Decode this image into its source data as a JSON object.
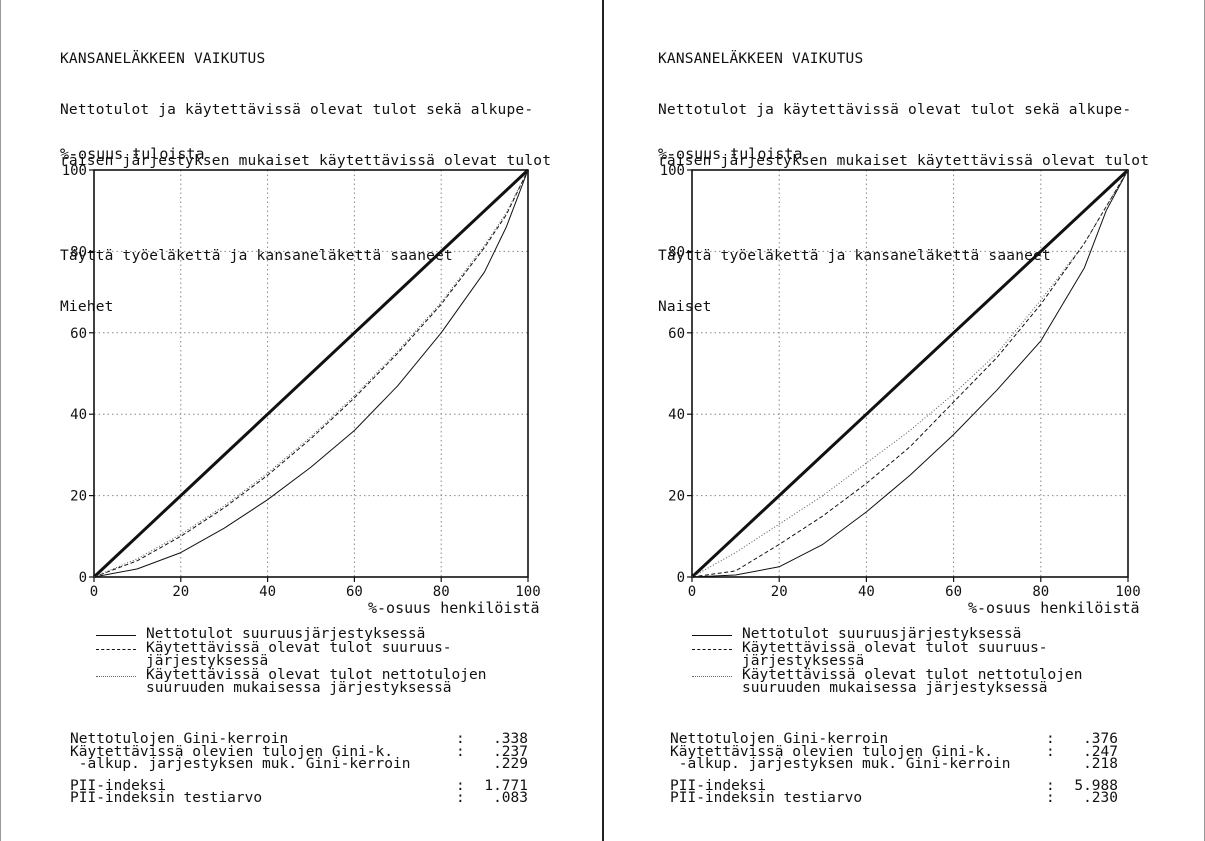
{
  "panels": [
    {
      "header": {
        "title": "KANSANELÄKKEEN VAIKUTUS",
        "line2": "Nettotulot ja käytettävissä olevat tulot sekä alkupe-",
        "line3": "räisen järjestyksen mukaiset käytettävissä olevat tulot",
        "line4": "Täyttä työeläkettä ja kansaneläkettä saaneet",
        "group": "Miehet"
      },
      "stats": [
        {
          "label": "Nettotulojen Gini-kerroin",
          "value": ".338"
        },
        {
          "label": "Käytettävissä olevien tulojen Gini-k.",
          "value": ".237"
        },
        {
          "label": " -alkup. jarjestyksen muk. Gini-kerroin",
          "value": ".229"
        },
        {
          "label": "PII-indeksi",
          "value": "1.771"
        },
        {
          "label": "PII-indeksin testiarvo",
          "value": ".083"
        }
      ]
    },
    {
      "header": {
        "title": "KANSANELÄKKEEN VAIKUTUS",
        "line2": "Nettotulot ja käytettävissä olevat tulot sekä alkupe-",
        "line3": "räisen järjestyksen mukaiset käytettävissä olevat tulot",
        "line4": "Täyttä työeläkettä ja kansaneläkettä saaneet",
        "group": "Naiset"
      },
      "stats": [
        {
          "label": "Nettotulojen Gini-kerroin",
          "value": ".376"
        },
        {
          "label": "Käytettävissä olevien tulojen Gini-k.",
          "value": ".247"
        },
        {
          "label": " -alkup. jarjestyksen muk. Gini-kerroin",
          "value": ".218"
        },
        {
          "label": "PII-indeksi",
          "value": "5.988"
        },
        {
          "label": "PII-indeksin testiarvo",
          "value": ".230"
        }
      ]
    }
  ],
  "legend": {
    "solid": [
      "Nettotulot suuruusjärjestyksessä"
    ],
    "dashed": [
      "Käytettävissä olevat tulot suuruus-",
      "järjestyksessä"
    ],
    "dotted": [
      "Käytettävissä olevat tulot nettotulojen",
      "suuruuden mukaisessa järjestyksessä"
    ]
  },
  "chart_data": [
    {
      "type": "line",
      "xlabel": "%-osuus henkilöistä",
      "ylabel": "%-osuus tuloista",
      "xlim": [
        0,
        100
      ],
      "ylim": [
        0,
        100
      ],
      "xticks": [
        0,
        20,
        40,
        60,
        80,
        100
      ],
      "yticks": [
        0,
        20,
        40,
        60,
        80,
        100
      ],
      "grid": true,
      "x": [
        0,
        10,
        20,
        30,
        40,
        50,
        60,
        70,
        80,
        90,
        95,
        100
      ],
      "series": [
        {
          "style": "thick",
          "values": [
            0,
            10,
            20,
            30,
            40,
            50,
            60,
            70,
            80,
            90,
            95,
            100
          ]
        },
        {
          "style": "solid",
          "values": [
            0,
            2,
            6,
            12,
            19,
            27,
            36,
            47,
            60,
            75,
            86,
            100
          ]
        },
        {
          "style": "dashed",
          "values": [
            0,
            4,
            10,
            17,
            25,
            34,
            44,
            55,
            67,
            81,
            89,
            100
          ]
        },
        {
          "style": "dotted",
          "values": [
            0,
            4.5,
            10.5,
            17.5,
            25.5,
            34.5,
            44.5,
            55.5,
            67.5,
            81.5,
            89.5,
            100
          ]
        }
      ]
    },
    {
      "type": "line",
      "xlabel": "%-osuus henkilöistä",
      "ylabel": "%-osuus tuloista",
      "xlim": [
        0,
        100
      ],
      "ylim": [
        0,
        100
      ],
      "xticks": [
        0,
        20,
        40,
        60,
        80,
        100
      ],
      "yticks": [
        0,
        20,
        40,
        60,
        80,
        100
      ],
      "grid": true,
      "x": [
        0,
        10,
        20,
        30,
        40,
        50,
        60,
        70,
        80,
        90,
        95,
        100
      ],
      "series": [
        {
          "style": "thick",
          "values": [
            0,
            10,
            20,
            30,
            40,
            50,
            60,
            70,
            80,
            90,
            95,
            100
          ]
        },
        {
          "style": "solid",
          "values": [
            0,
            0.5,
            2.5,
            8,
            16,
            25,
            35,
            46,
            58,
            76,
            90,
            100
          ]
        },
        {
          "style": "dashed",
          "values": [
            0,
            1.5,
            8,
            15,
            23,
            32,
            43,
            54,
            67,
            82,
            91,
            100
          ]
        },
        {
          "style": "dotted",
          "values": [
            0,
            6,
            13,
            20,
            28,
            36,
            45,
            55,
            68,
            82,
            91,
            100
          ]
        }
      ]
    }
  ]
}
